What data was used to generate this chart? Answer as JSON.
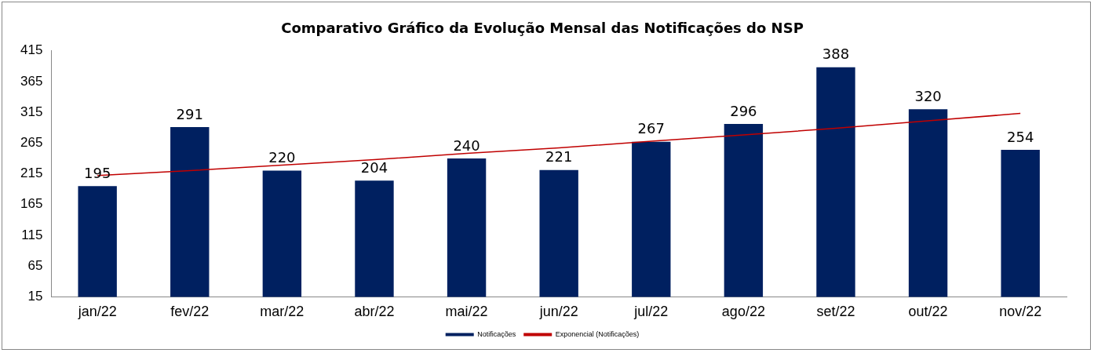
{
  "chart_data": {
    "type": "bar",
    "title": "Comparativo Gráfico da Evolução Mensal das Notificações do NSP",
    "categories": [
      "jan/22",
      "fev/22",
      "mar/22",
      "abr/22",
      "mai/22",
      "jun/22",
      "jul/22",
      "ago/22",
      "set/22",
      "out/22",
      "nov/22"
    ],
    "series": [
      {
        "name": "Notificações",
        "color": "#002060",
        "values": [
          195,
          291,
          220,
          204,
          240,
          221,
          267,
          296,
          388,
          320,
          254
        ],
        "value_labels": [
          "195",
          "291",
          "220",
          "204",
          "240",
          "221",
          "267",
          "296",
          "388",
          "320",
          "254"
        ]
      },
      {
        "name": "Exponencial (Notificações)",
        "type": "line",
        "color": "#c00000",
        "values": [
          212,
          220,
          229,
          238,
          248,
          257,
          268,
          278,
          289,
          301,
          313
        ]
      }
    ],
    "ylim": [
      15,
      415
    ],
    "yticks": [
      15,
      65,
      115,
      165,
      215,
      265,
      315,
      365,
      415
    ],
    "grid": false,
    "legend": "bottom",
    "marker": "none"
  }
}
